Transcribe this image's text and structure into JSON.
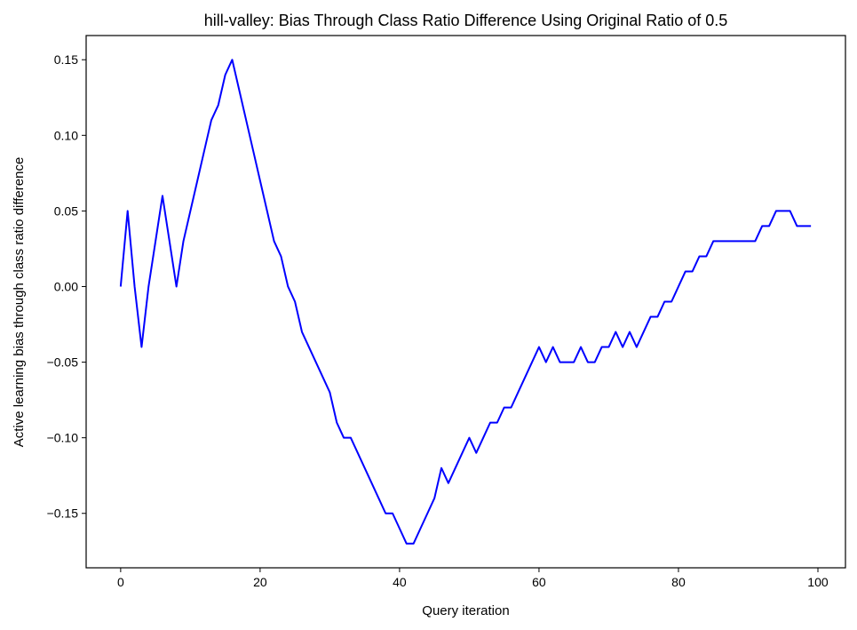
{
  "chart_data": {
    "type": "line",
    "title": "hill-valley: Bias Through Class Ratio Difference Using Original Ratio of 0.5",
    "xlabel": "Query iteration",
    "ylabel": "Active learning bias through class ratio difference",
    "xlim": [
      -4.95,
      103.95
    ],
    "ylim": [
      -0.186,
      0.166
    ],
    "xticks": [
      0,
      20,
      40,
      60,
      80,
      100
    ],
    "yticks": [
      -0.15,
      -0.1,
      -0.05,
      0.0,
      0.05,
      0.1,
      0.15
    ],
    "xtick_labels": [
      "0",
      "20",
      "40",
      "60",
      "80",
      "100"
    ],
    "ytick_labels": [
      "−0.15",
      "−0.10",
      "−0.05",
      "0.00",
      "0.05",
      "0.10",
      "0.15"
    ],
    "grid": false,
    "series": [
      {
        "color": "#0000ff",
        "x": [
          0,
          1,
          2,
          3,
          4,
          5,
          6,
          7,
          8,
          9,
          10,
          11,
          12,
          13,
          14,
          15,
          16,
          17,
          18,
          19,
          20,
          21,
          22,
          23,
          24,
          25,
          26,
          27,
          28,
          29,
          30,
          31,
          32,
          33,
          34,
          35,
          36,
          37,
          38,
          39,
          40,
          41,
          42,
          43,
          44,
          45,
          46,
          47,
          48,
          49,
          50,
          51,
          52,
          53,
          54,
          55,
          56,
          57,
          58,
          59,
          60,
          61,
          62,
          63,
          64,
          65,
          66,
          67,
          68,
          69,
          70,
          71,
          72,
          73,
          74,
          75,
          76,
          77,
          78,
          79,
          80,
          81,
          82,
          83,
          84,
          85,
          86,
          87,
          88,
          89,
          90,
          91,
          92,
          93,
          94,
          95,
          96,
          97,
          98,
          99
        ],
        "y": [
          0.0,
          0.05,
          0.0,
          -0.04,
          0.0,
          0.03,
          0.06,
          0.03,
          0.0,
          0.03,
          0.05,
          0.07,
          0.09,
          0.11,
          0.12,
          0.14,
          0.15,
          0.13,
          0.11,
          0.09,
          0.07,
          0.05,
          0.03,
          0.02,
          0.0,
          -0.01,
          -0.03,
          -0.04,
          -0.05,
          -0.06,
          -0.07,
          -0.09,
          -0.1,
          -0.1,
          -0.11,
          -0.12,
          -0.13,
          -0.14,
          -0.15,
          -0.15,
          -0.16,
          -0.17,
          -0.17,
          -0.16,
          -0.15,
          -0.14,
          -0.12,
          -0.13,
          -0.12,
          -0.11,
          -0.1,
          -0.11,
          -0.1,
          -0.09,
          -0.09,
          -0.08,
          -0.08,
          -0.07,
          -0.06,
          -0.05,
          -0.04,
          -0.05,
          -0.04,
          -0.05,
          -0.05,
          -0.05,
          -0.04,
          -0.05,
          -0.05,
          -0.04,
          -0.04,
          -0.03,
          -0.04,
          -0.03,
          -0.04,
          -0.03,
          -0.02,
          -0.02,
          -0.01,
          -0.01,
          0.0,
          0.01,
          0.01,
          0.02,
          0.02,
          0.03,
          0.03,
          0.03,
          0.03,
          0.03,
          0.03,
          0.03,
          0.04,
          0.04,
          0.05,
          0.05,
          0.05,
          0.04,
          0.04,
          0.04
        ]
      }
    ]
  }
}
